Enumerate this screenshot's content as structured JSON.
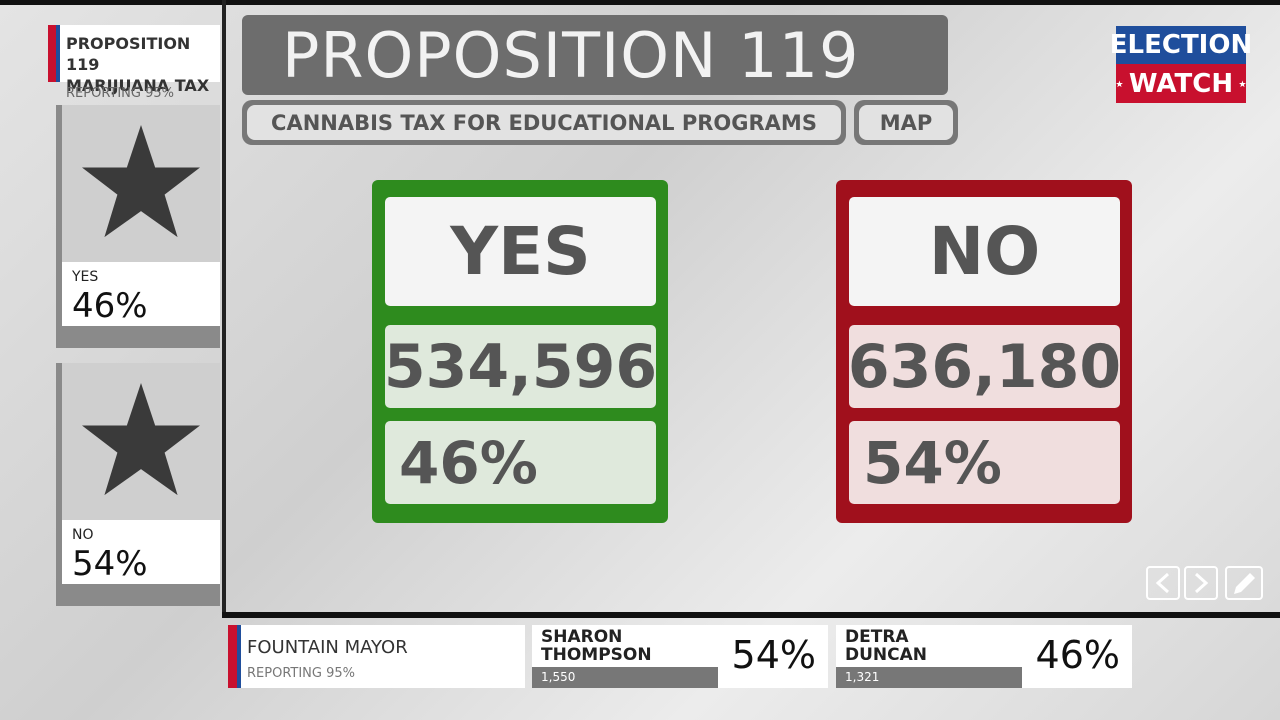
{
  "sidebar": {
    "title_lines": [
      "PROPOSITION 119",
      "MARIJUANA TAX"
    ],
    "reporting": "REPORTING 95%",
    "cards": [
      {
        "label": "YES",
        "percent": "46%"
      },
      {
        "label": "NO",
        "percent": "54%"
      }
    ]
  },
  "header": {
    "title": "PROPOSITION 119",
    "subtitle": "CANNABIS TAX FOR EDUCATIONAL PROGRAMS",
    "map_button": "MAP"
  },
  "logo": {
    "line1": "ELECTION",
    "line2": "WATCH"
  },
  "results": [
    {
      "label": "YES",
      "votes": "534,596",
      "percent": "46%"
    },
    {
      "label": "NO",
      "votes": "636,180",
      "percent": "54%"
    }
  ],
  "ticker": {
    "race": "FOUNTAIN MAYOR",
    "reporting": "REPORTING 95%",
    "candidates": [
      {
        "name_lines": [
          "SHARON",
          "THOMPSON"
        ],
        "votes": "1,550",
        "percent": "54%"
      },
      {
        "name_lines": [
          "DETRA",
          "DUNCAN"
        ],
        "votes": "1,321",
        "percent": "46%"
      }
    ]
  }
}
